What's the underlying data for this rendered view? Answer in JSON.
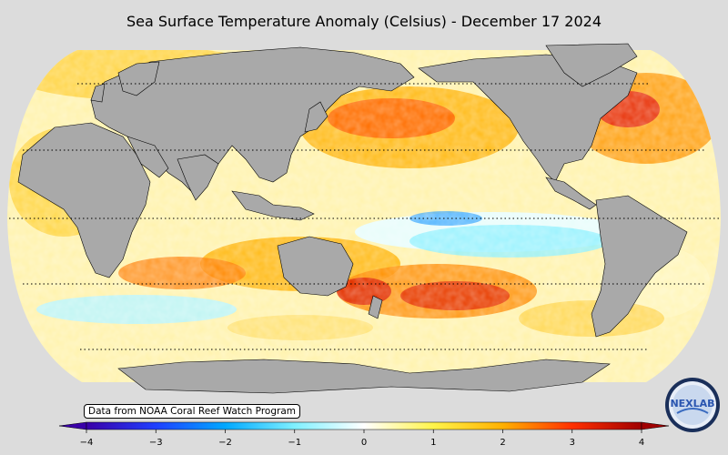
{
  "title": "Sea Surface Temperature Anomaly (Celsius) - December 17 2024",
  "source_note": "Data from NOAA Coral Reef Watch Program",
  "logo_text": "NEXLAB",
  "colorbar": {
    "min": -4,
    "max": 4,
    "extend": "both",
    "tick_labels": [
      "−4",
      "−3",
      "−2",
      "−1",
      "0",
      "1",
      "2",
      "3",
      "4"
    ],
    "colors": [
      "#3a00a8",
      "#1f3fff",
      "#00a8ff",
      "#7ff0ff",
      "#ffffff",
      "#fff44a",
      "#ffb000",
      "#ff3000",
      "#a00000"
    ]
  },
  "colors": {
    "background": "#dcdcdc",
    "land": "#a9a9a9",
    "no_data": "#e6e6e6"
  },
  "map": {
    "projection": "Robinson",
    "central_longitude": "180",
    "gridlines": "dotted"
  }
}
